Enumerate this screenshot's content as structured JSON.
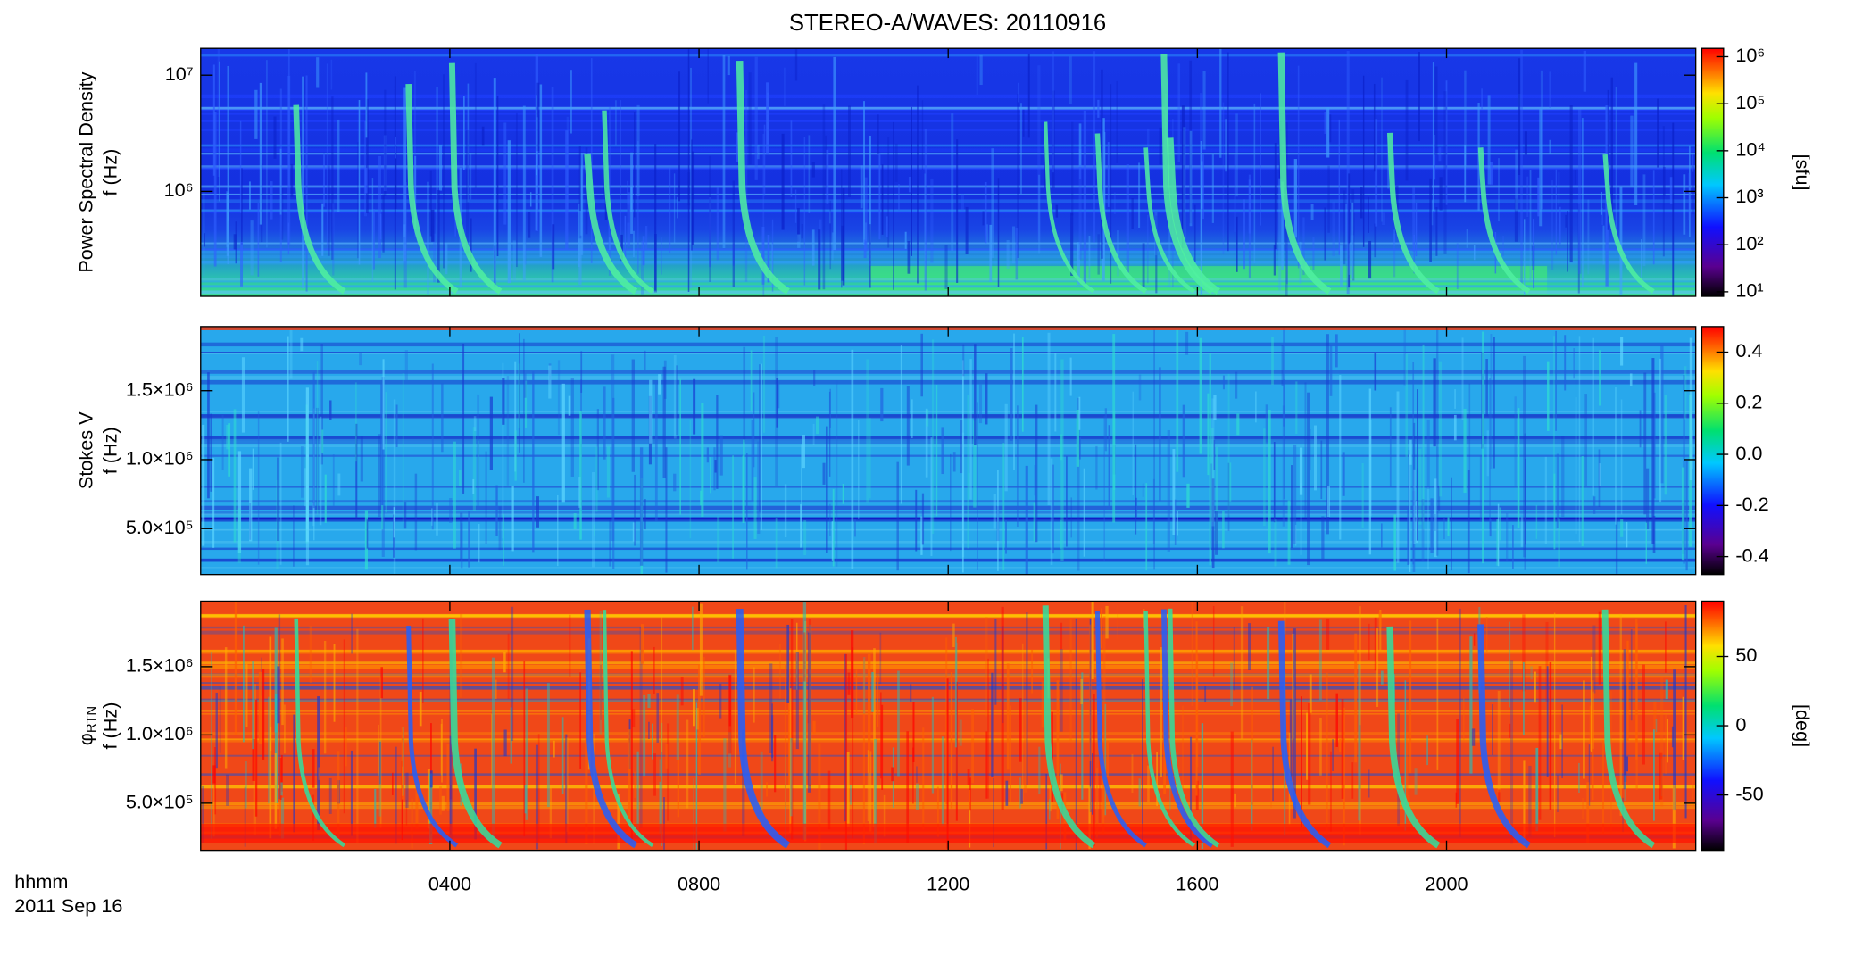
{
  "chart_data": [
    {
      "type": "spectrogram",
      "title": "STEREO-A/WAVES: 20110916",
      "ylabel": "Power Spectral Density",
      "ylabel_unit": "f (Hz)",
      "yscale": "log",
      "ylim": [
        125000,
        17000000
      ],
      "yticks": [
        {
          "value": 1000000,
          "label": "10⁶"
        },
        {
          "value": 10000000,
          "label": "10⁷"
        }
      ],
      "colorbar": {
        "scale": "log",
        "lim": [
          8,
          1500000
        ],
        "ticks": [
          {
            "value": 10,
            "label": "10¹"
          },
          {
            "value": 100,
            "label": "10²"
          },
          {
            "value": 1000,
            "label": "10³"
          },
          {
            "value": 10000,
            "label": "10⁴"
          },
          {
            "value": 100000,
            "label": "10⁵"
          },
          {
            "value": 1000000,
            "label": "10⁶"
          }
        ],
        "label": "[sfu]"
      }
    },
    {
      "type": "spectrogram",
      "ylabel": "Stokes V",
      "ylabel_unit": "f (Hz)",
      "yscale": "linear",
      "ylim": [
        167000,
        1965000
      ],
      "yticks": [
        {
          "value": 500000,
          "label": "5.0×10⁵"
        },
        {
          "value": 1000000,
          "label": "1.0×10⁶"
        },
        {
          "value": 1500000,
          "label": "1.5×10⁶"
        }
      ],
      "colorbar": {
        "scale": "linear",
        "lim": [
          -0.47,
          0.5
        ],
        "ticks": [
          -0.4,
          -0.2,
          {
            "value": 0,
            "label": "0.0"
          },
          0.2,
          0.4
        ]
      }
    },
    {
      "type": "spectrogram",
      "ylabel": "φ",
      "ylabel_sub": "RTN",
      "ylabel_unit": "f (Hz)",
      "yscale": "linear",
      "ylim": [
        155000,
        1980000
      ],
      "yticks": [
        {
          "value": 500000,
          "label": "5.0×10⁵"
        },
        {
          "value": 1000000,
          "label": "1.0×10⁶"
        },
        {
          "value": 1500000,
          "label": "1.5×10⁶"
        }
      ],
      "colorbar": {
        "scale": "linear",
        "lim": [
          -90,
          90
        ],
        "ticks": [
          -50,
          0,
          50
        ],
        "label": "[deg]"
      },
      "xlabel": "hhmm",
      "xlabel_date": "2011 Sep 16",
      "xlim": [
        0,
        24
      ],
      "xticks": [
        {
          "value": 4,
          "label": "0400"
        },
        {
          "value": 8,
          "label": "0800"
        },
        {
          "value": 12,
          "label": "1200"
        },
        {
          "value": 16,
          "label": "1600"
        },
        {
          "value": 20,
          "label": "2000"
        }
      ]
    }
  ]
}
